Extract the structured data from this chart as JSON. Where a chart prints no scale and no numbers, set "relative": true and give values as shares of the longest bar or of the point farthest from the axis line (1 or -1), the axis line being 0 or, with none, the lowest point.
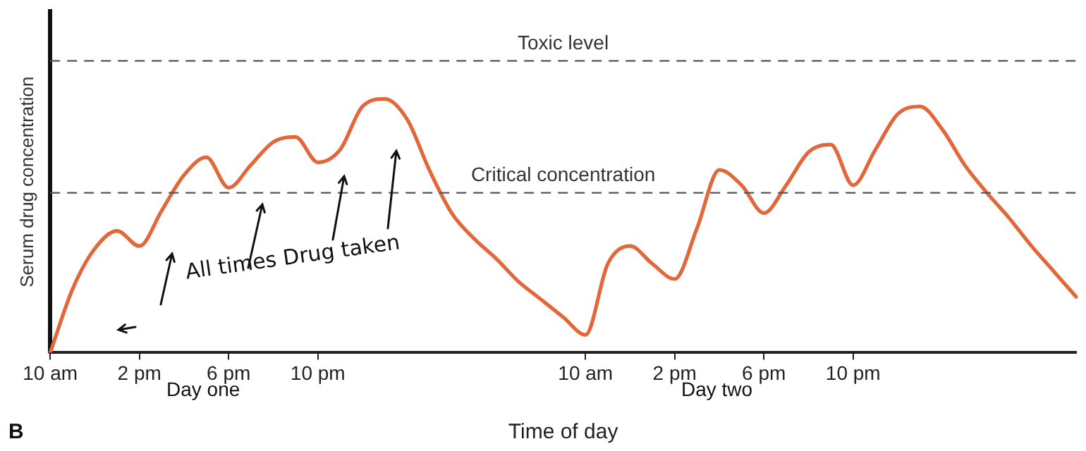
{
  "chart_data": {
    "type": "line",
    "relative": true,
    "ylabel": "Serum drug concentration",
    "xlabel": "Time of day",
    "categories": [
      "10 am",
      null,
      null,
      null,
      "2 pm",
      null,
      null,
      null,
      "6 pm",
      null,
      null,
      null,
      "10 pm",
      null,
      null,
      null,
      null,
      null,
      null,
      null,
      null,
      null,
      null,
      null,
      "10 am",
      null,
      null,
      null,
      "2 pm",
      null,
      null,
      null,
      "6 pm",
      null,
      null,
      null,
      "10 pm",
      null,
      null,
      null,
      null,
      null,
      null,
      null,
      null,
      null,
      null
    ],
    "series": [
      {
        "color": "#e2673b",
        "values": [
          0,
          0.25,
          0.41,
          0.48,
          0.42,
          0.56,
          0.7,
          0.77,
          0.65,
          0.74,
          0.83,
          0.85,
          0.75,
          0.8,
          0.97,
          1,
          0.92,
          0.72,
          0.55,
          0.45,
          0.37,
          0.28,
          0.21,
          0.14,
          0.07,
          0.35,
          0.42,
          0.35,
          0.29,
          0.49,
          0.72,
          0.66,
          0.55,
          0.66,
          0.79,
          0.82,
          0.66,
          0.8,
          0.94,
          0.97,
          0.88,
          0.74,
          0.63,
          0.53,
          0.42,
          0.32,
          0.22
        ]
      }
    ],
    "ref_lines": [
      {
        "axis": "y",
        "value": 1.15,
        "label": "Toxic level",
        "color": "#555555",
        "line_style": "dashed"
      },
      {
        "axis": "y",
        "value": 0.63,
        "label": "Critical concentration",
        "color": "#555555",
        "line_style": "dashed"
      }
    ],
    "annotations": [
      "Day one",
      "Day two",
      "All times Drug taken",
      "B"
    ],
    "grid": false,
    "legend": false,
    "marker": "none",
    "line_style": "solid"
  }
}
